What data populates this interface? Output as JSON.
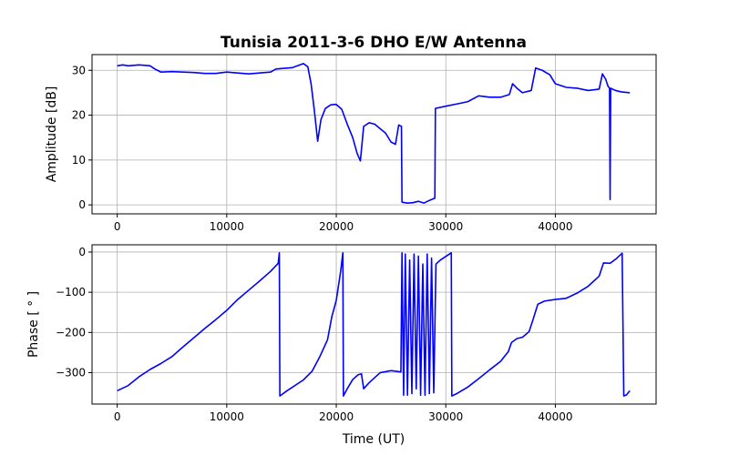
{
  "figure": {
    "title": "Tunisia 2011-3-6 DHO   E/W Antenna",
    "xlabel": "Time (UT)"
  },
  "colors": {
    "series": "#0000ff",
    "grid": "#b0b0b0",
    "axes": "#000000"
  },
  "chart_data": [
    {
      "type": "line",
      "title": "Tunisia 2011-3-6 DHO   E/W Antenna",
      "xlabel": "",
      "ylabel": "Amplitude [dB]",
      "xlim": [
        -2300,
        49200
      ],
      "ylim": [
        -2,
        33.5
      ],
      "xticks": [
        0,
        10000,
        20000,
        30000,
        40000
      ],
      "yticks": [
        0,
        10,
        20,
        30
      ],
      "grid": true,
      "series": [
        {
          "points": [
            [
              0,
              31.0
            ],
            [
              500,
              31.2
            ],
            [
              1000,
              31.0
            ],
            [
              2000,
              31.2
            ],
            [
              3000,
              31.0
            ],
            [
              3500,
              30.2
            ],
            [
              4000,
              29.6
            ],
            [
              5000,
              29.7
            ],
            [
              6000,
              29.6
            ],
            [
              7000,
              29.5
            ],
            [
              8000,
              29.3
            ],
            [
              9000,
              29.3
            ],
            [
              10000,
              29.6
            ],
            [
              11000,
              29.4
            ],
            [
              12000,
              29.2
            ],
            [
              13000,
              29.4
            ],
            [
              14000,
              29.6
            ],
            [
              14500,
              30.3
            ],
            [
              15000,
              30.4
            ],
            [
              16000,
              30.6
            ],
            [
              17000,
              31.5
            ],
            [
              17400,
              30.8
            ],
            [
              17700,
              27.0
            ],
            [
              18000,
              21.0
            ],
            [
              18300,
              14.2
            ],
            [
              18600,
              19.0
            ],
            [
              19000,
              21.5
            ],
            [
              19500,
              22.3
            ],
            [
              20000,
              22.4
            ],
            [
              20500,
              21.3
            ],
            [
              21000,
              18.0
            ],
            [
              21500,
              15.0
            ],
            [
              21900,
              11.5
            ],
            [
              22200,
              9.8
            ],
            [
              22500,
              17.5
            ],
            [
              23000,
              18.3
            ],
            [
              23500,
              18.0
            ],
            [
              24000,
              17.0
            ],
            [
              24500,
              16.0
            ],
            [
              25000,
              14.0
            ],
            [
              25400,
              13.5
            ],
            [
              25700,
              17.8
            ],
            [
              25950,
              17.5
            ],
            [
              26000,
              0.6
            ],
            [
              26500,
              0.4
            ],
            [
              27000,
              0.5
            ],
            [
              27500,
              0.8
            ],
            [
              28000,
              0.4
            ],
            [
              28500,
              1.0
            ],
            [
              29000,
              1.5
            ],
            [
              29050,
              21.5
            ],
            [
              30000,
              22.0
            ],
            [
              31000,
              22.5
            ],
            [
              32000,
              23.0
            ],
            [
              33000,
              24.3
            ],
            [
              34000,
              24.0
            ],
            [
              35000,
              24.0
            ],
            [
              35800,
              24.6
            ],
            [
              36100,
              27.0
            ],
            [
              36500,
              26.0
            ],
            [
              37000,
              25.0
            ],
            [
              37800,
              25.5
            ],
            [
              38200,
              30.5
            ],
            [
              38800,
              30.0
            ],
            [
              39500,
              29.0
            ],
            [
              40000,
              27.0
            ],
            [
              41000,
              26.2
            ],
            [
              42000,
              26.0
            ],
            [
              43000,
              25.5
            ],
            [
              44000,
              25.8
            ],
            [
              44300,
              29.2
            ],
            [
              44600,
              28.0
            ],
            [
              44800,
              26.5
            ],
            [
              44950,
              26.0
            ],
            [
              45000,
              1.2
            ],
            [
              45050,
              26.0
            ],
            [
              45500,
              25.5
            ],
            [
              46000,
              25.2
            ],
            [
              46800,
              25.0
            ]
          ]
        }
      ]
    },
    {
      "type": "line",
      "xlabel": "Time (UT)",
      "ylabel": "Phase [ ° ]",
      "xlim": [
        -2300,
        49200
      ],
      "ylim": [
        -378,
        18
      ],
      "xticks": [
        0,
        10000,
        20000,
        30000,
        40000
      ],
      "yticks": [
        0,
        -100,
        -200,
        -300
      ],
      "grid": true,
      "series": [
        {
          "points": [
            [
              0,
              -345
            ],
            [
              1000,
              -332
            ],
            [
              2000,
              -310
            ],
            [
              3000,
              -292
            ],
            [
              4000,
              -277
            ],
            [
              5000,
              -260
            ],
            [
              6000,
              -236
            ],
            [
              7000,
              -213
            ],
            [
              8000,
              -190
            ],
            [
              9000,
              -168
            ],
            [
              10000,
              -145
            ],
            [
              11000,
              -118
            ],
            [
              12000,
              -95
            ],
            [
              13000,
              -72
            ],
            [
              14000,
              -48
            ],
            [
              14700,
              -28
            ],
            [
              14800,
              -2
            ],
            [
              14850,
              -358
            ],
            [
              15500,
              -345
            ],
            [
              17000,
              -318
            ],
            [
              17800,
              -296
            ],
            [
              18500,
              -260
            ],
            [
              19200,
              -218
            ],
            [
              19600,
              -160
            ],
            [
              20000,
              -120
            ],
            [
              20400,
              -48
            ],
            [
              20600,
              -2
            ],
            [
              20650,
              -358
            ],
            [
              21000,
              -340
            ],
            [
              21500,
              -317
            ],
            [
              22000,
              -305
            ],
            [
              22300,
              -303
            ],
            [
              22500,
              -340
            ],
            [
              23000,
              -325
            ],
            [
              24000,
              -300
            ],
            [
              25000,
              -295
            ],
            [
              25900,
              -298
            ],
            [
              26000,
              -2
            ],
            [
              26150,
              -356
            ],
            [
              26300,
              -5
            ],
            [
              26500,
              -356
            ],
            [
              26700,
              -20
            ],
            [
              26900,
              -352
            ],
            [
              27100,
              -5
            ],
            [
              27300,
              -340
            ],
            [
              27500,
              -10
            ],
            [
              27700,
              -356
            ],
            [
              27900,
              -30
            ],
            [
              28100,
              -356
            ],
            [
              28300,
              -5
            ],
            [
              28500,
              -352
            ],
            [
              28700,
              -15
            ],
            [
              28900,
              -350
            ],
            [
              29100,
              -30
            ],
            [
              29500,
              -20
            ],
            [
              30500,
              -2
            ],
            [
              30550,
              -358
            ],
            [
              31000,
              -352
            ],
            [
              32000,
              -336
            ],
            [
              33000,
              -315
            ],
            [
              34000,
              -293
            ],
            [
              35000,
              -272
            ],
            [
              35700,
              -248
            ],
            [
              36000,
              -225
            ],
            [
              36500,
              -215
            ],
            [
              37000,
              -212
            ],
            [
              37600,
              -198
            ],
            [
              38000,
              -165
            ],
            [
              38400,
              -130
            ],
            [
              39000,
              -122
            ],
            [
              40000,
              -118
            ],
            [
              41000,
              -115
            ],
            [
              42000,
              -102
            ],
            [
              43000,
              -85
            ],
            [
              44000,
              -60
            ],
            [
              44400,
              -27
            ],
            [
              45000,
              -28
            ],
            [
              45500,
              -18
            ],
            [
              46100,
              -3
            ],
            [
              46250,
              -358
            ],
            [
              46500,
              -355
            ],
            [
              46800,
              -345
            ]
          ]
        }
      ]
    }
  ]
}
